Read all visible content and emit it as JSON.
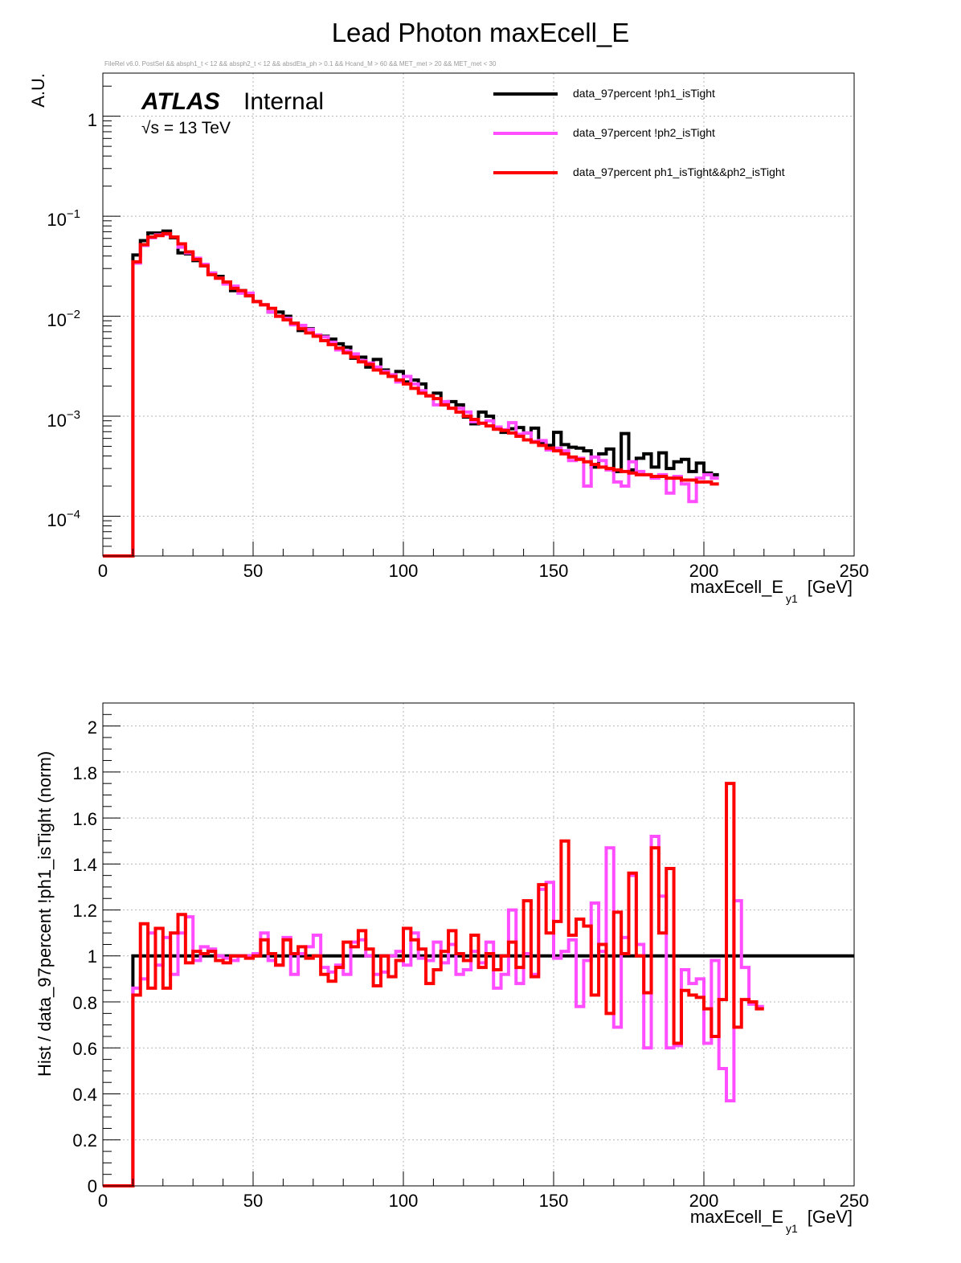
{
  "title": "Lead Photon maxEcell_E",
  "selection": "FileRel v6.0. PostSel &&  absph1_t < 12 && absph2_t < 12 && absdEta_ph > 0.1 && Hcand_M > 60 && MET_met > 20 && MET_met < 30",
  "atlas": {
    "label": "ATLAS",
    "status": "Internal",
    "energy_prefix": "√s = 13 TeV"
  },
  "colors": {
    "black": "#000000",
    "magenta": "#ff4dff",
    "red": "#ff0000",
    "grid": "#b4b4b4"
  },
  "chart_data": [
    {
      "type": "line",
      "scale": "log",
      "title": "Lead Photon maxEcell_E",
      "xlabel": "maxEcell_E",
      "xlabel_sub": "y1",
      "xlabel_unit": "[GeV]",
      "ylabel": "A.U.",
      "xlim": [
        0,
        250
      ],
      "ylim": [
        4e-05,
        2.7
      ],
      "x_ticks": [
        "0",
        "50",
        "100",
        "150",
        "200",
        "250"
      ],
      "y_ticks": [
        {
          "mant": "1",
          "exp": ""
        },
        {
          "mant": "10",
          "exp": "−1"
        },
        {
          "mant": "10",
          "exp": "−2"
        },
        {
          "mant": "10",
          "exp": "−3"
        },
        {
          "mant": "10",
          "exp": "−4"
        }
      ],
      "legend_position": "top-right",
      "bin_width": 2.5,
      "series": [
        {
          "name": "data_97percent  !ph1_isTight",
          "color": "#000000",
          "values": [
            0,
            0,
            0,
            0,
            0.041,
            0.057,
            0.068,
            0.068,
            0.071,
            0.061,
            0.043,
            0.042,
            0.036,
            0.032,
            0.027,
            0.025,
            0.022,
            0.018,
            0.018,
            0.016,
            0.014,
            0.013,
            0.011,
            0.011,
            0.01,
            0.0085,
            0.0072,
            0.0075,
            0.0064,
            0.0063,
            0.0059,
            0.0053,
            0.0049,
            0.0038,
            0.0039,
            0.0031,
            0.0037,
            0.0029,
            0.0025,
            0.0028,
            0.0022,
            0.0023,
            0.0021,
            0.0016,
            0.0017,
            0.0013,
            0.0014,
            0.0013,
            0.00098,
            0.00084,
            0.0011,
            0.001,
            0.00075,
            0.00069,
            0.00075,
            0.00077,
            0.00068,
            0.00076,
            0.00054,
            0.00051,
            0.00069,
            0.00052,
            0.00049,
            0.00048,
            0.00045,
            0.00031,
            0.00042,
            0.00047,
            0.00028,
            0.00067,
            0.00029,
            0.00038,
            0.00042,
            0.00031,
            0.00043,
            0.0003,
            0.00035,
            0.00037,
            0.00028,
            0.00034,
            0.00027,
            0.00026
          ]
        },
        {
          "name": "data_97percent  !ph2_isTight",
          "color": "#ff4dff",
          "values": [
            0,
            0,
            0,
            0,
            0.034,
            0.051,
            0.061,
            0.065,
            0.066,
            0.062,
            0.049,
            0.043,
            0.038,
            0.033,
            0.027,
            0.024,
            0.021,
            0.02,
            0.017,
            0.017,
            0.014,
            0.013,
            0.011,
            0.01,
            0.0095,
            0.0082,
            0.0081,
            0.0074,
            0.0065,
            0.0062,
            0.0055,
            0.0046,
            0.0045,
            0.0042,
            0.0036,
            0.0034,
            0.0031,
            0.0028,
            0.0026,
            0.0022,
            0.0025,
            0.0021,
            0.0018,
            0.0016,
            0.0013,
            0.0014,
            0.0012,
            0.0012,
            0.0011,
            0.00088,
            0.00085,
            0.0009,
            0.00078,
            0.00073,
            0.00086,
            0.00066,
            0.00068,
            0.00056,
            0.00057,
            0.00046,
            0.00048,
            0.00045,
            0.00036,
            0.00038,
            0.0002,
            0.00039,
            0.00036,
            0.00029,
            0.00022,
            0.0002,
            0.00035,
            0.00028,
            0.00026,
            0.00024,
            0.00026,
            0.00017,
            0.00025,
            0.00021,
            0.00014,
            0.00024,
            0.00026,
            0.00024
          ]
        },
        {
          "name": "data_97percent  ph1_isTight&&ph2_isTight",
          "color": "#ff0000",
          "values": [
            0,
            0,
            0,
            0,
            0.035,
            0.052,
            0.062,
            0.064,
            0.067,
            0.062,
            0.053,
            0.044,
            0.037,
            0.032,
            0.026,
            0.024,
            0.022,
            0.019,
            0.018,
            0.016,
            0.014,
            0.013,
            0.012,
            0.01,
            0.0092,
            0.0085,
            0.0075,
            0.0068,
            0.0063,
            0.0057,
            0.0052,
            0.0048,
            0.0043,
            0.0039,
            0.0035,
            0.0033,
            0.0029,
            0.0027,
            0.0025,
            0.0023,
            0.0021,
            0.0019,
            0.0017,
            0.0016,
            0.0015,
            0.0013,
            0.0012,
            0.0011,
            0.001,
            0.00093,
            0.00085,
            0.0008,
            0.00074,
            0.00072,
            0.00068,
            0.00063,
            0.00058,
            0.00055,
            0.00051,
            0.00048,
            0.00045,
            0.00042,
            0.00039,
            0.00037,
            0.00035,
            0.00033,
            0.00031,
            0.0003,
            0.00029,
            0.00028,
            0.00027,
            0.00026,
            0.00026,
            0.00025,
            0.00025,
            0.00024,
            0.00024,
            0.00023,
            0.00023,
            0.00022,
            0.00022,
            0.00021
          ]
        }
      ]
    },
    {
      "type": "line",
      "scale": "linear",
      "xlabel": "maxEcell_E",
      "xlabel_sub": "y1",
      "xlabel_unit": "[GeV]",
      "ylabel": "Hist / data_97percent  !ph1_isTight (norm)",
      "xlim": [
        0,
        250
      ],
      "ylim": [
        0,
        2.1
      ],
      "x_ticks": [
        "0",
        "50",
        "100",
        "150",
        "200",
        "250"
      ],
      "y_ticks": [
        "0",
        "0.2",
        "0.4",
        "0.6",
        "0.8",
        "1",
        "1.2",
        "1.4",
        "1.6",
        "1.8",
        "2"
      ],
      "bin_width": 2.5,
      "series": [
        {
          "name": "data_97percent  !ph1_isTight",
          "color": "#000000",
          "values": [
            0,
            0,
            0,
            0,
            1,
            1,
            1,
            1,
            1,
            1,
            1,
            1,
            1,
            1,
            1,
            1,
            1,
            1,
            1,
            1,
            1,
            1,
            1,
            1,
            1,
            1,
            1,
            1,
            1,
            1,
            1,
            1,
            1,
            1,
            1,
            1,
            1,
            1,
            1,
            1,
            1,
            1,
            1,
            1,
            1,
            1,
            1,
            1,
            1,
            1,
            1,
            1,
            1,
            1,
            1,
            1,
            1,
            1,
            1,
            1,
            1,
            1,
            1,
            1,
            1,
            1,
            1,
            1,
            1,
            1,
            1,
            1,
            1,
            1,
            1,
            1,
            1,
            1,
            1,
            1,
            1,
            1,
            1,
            1,
            1,
            1,
            1,
            1,
            1,
            1,
            1,
            1,
            1,
            1,
            1,
            1,
            1,
            1,
            1,
            1
          ]
        },
        {
          "name": "data_97percent  !ph2_isTight",
          "color": "#ff4dff",
          "values": [
            0,
            0,
            0,
            0,
            0.86,
            0.9,
            1.1,
            0.96,
            1.08,
            0.92,
            1.1,
            1.17,
            0.98,
            1.04,
            1.03,
            1.0,
            0.99,
            0.98,
            1.0,
            1.0,
            1.01,
            1.1,
            0.98,
            0.96,
            1.08,
            0.92,
            1.01,
            1.04,
            1.09,
            0.95,
            0.93,
            0.96,
            0.92,
            1.06,
            1.07,
            1.0,
            0.92,
            0.93,
            1.0,
            1.02,
            0.96,
            1.1,
            0.99,
            0.98,
            1.06,
            0.97,
            1.05,
            0.92,
            0.94,
            1.02,
            0.97,
            1.06,
            0.86,
            0.92,
            1.2,
            0.88,
            1.01,
            0.92,
            1.29,
            1.32,
            0.99,
            1.02,
            1.07,
            0.78,
            0.98,
            1.23,
            1.02,
            1.47,
            0.69,
            1.08,
            1.35,
            1.05,
            0.6,
            1.52,
            1.26,
            0.6,
            0.61,
            0.94,
            0.88,
            0.9,
            0.62,
            0.98,
            0.51,
            0.37,
            1.24,
            0.95,
            0.79,
            0.78
          ]
        },
        {
          "name": "data_97percent  ph1_isTight&&ph2_isTight",
          "color": "#ff0000",
          "values": [
            0,
            0,
            0,
            0,
            0.83,
            1.14,
            0.86,
            1.12,
            0.86,
            1.1,
            1.18,
            0.97,
            1.02,
            1.01,
            1.02,
            0.98,
            0.97,
            1.0,
            1.0,
            0.99,
            1.0,
            1.07,
            1.01,
            0.96,
            1.07,
            1.01,
            1.04,
            0.99,
            1.0,
            0.92,
            0.89,
            0.95,
            1.06,
            1.04,
            1.11,
            1.03,
            0.87,
            1.0,
            0.91,
            0.98,
            1.12,
            1.07,
            1.03,
            0.88,
            0.94,
            1.02,
            1.11,
            1.01,
            0.98,
            1.09,
            0.95,
            1.01,
            0.94,
            1.0,
            1.06,
            0.95,
            1.24,
            0.91,
            1.31,
            1.1,
            1.15,
            1.5,
            1.09,
            1.16,
            1.13,
            0.83,
            1.05,
            0.75,
            1.19,
            1.01,
            1.36,
            1.0,
            0.84,
            1.47,
            1.1,
            1.38,
            0.62,
            0.85,
            0.83,
            0.82,
            0.77,
            0.65,
            0.81,
            1.75,
            0.69,
            0.81,
            0.8,
            0.77
          ]
        }
      ]
    }
  ]
}
